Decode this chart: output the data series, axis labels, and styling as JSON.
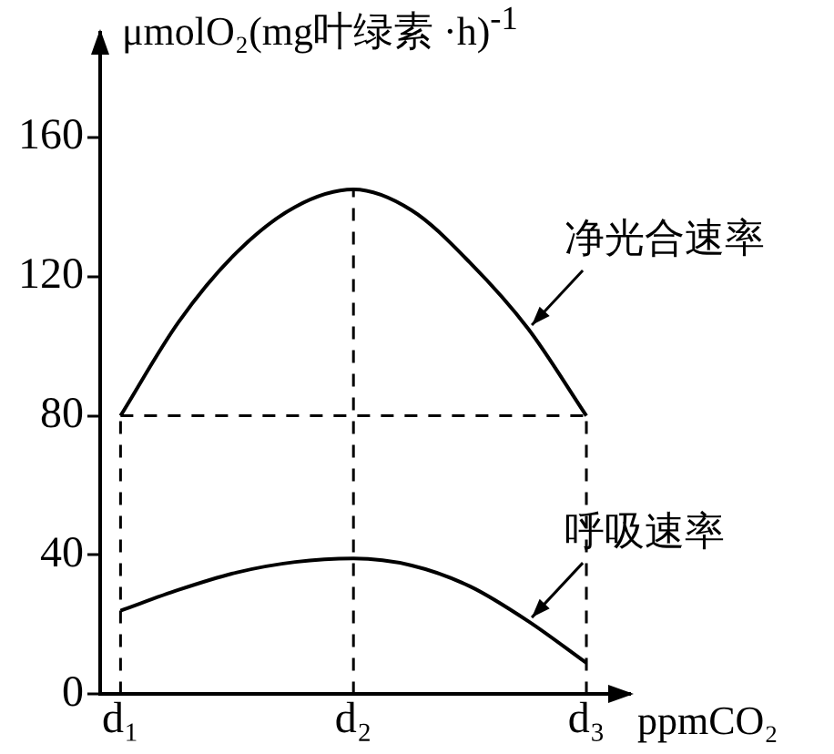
{
  "chart_data": {
    "type": "line",
    "xlabel": "ppmCO₂",
    "ylabel": "μmolO₂(mg叶绿素 ·h)$^{-1}$",
    "categories": [
      "d₁",
      null,
      null,
      null,
      "d₂",
      null,
      null,
      null,
      "d₃"
    ],
    "ylim": [
      0,
      190
    ],
    "yticks": [
      0,
      40,
      80,
      120,
      160
    ],
    "grid": false,
    "legend": false,
    "marker": "none",
    "line_style": "solid",
    "series": [
      {
        "name": "净光合速率",
        "color": "#000000",
        "values": [
          80,
          107,
          127,
          140,
          145,
          139,
          124,
          105,
          80
        ]
      },
      {
        "name": "呼吸速率",
        "color": "#000000",
        "values": [
          24,
          30,
          35,
          38,
          39,
          37,
          31,
          21,
          9
        ]
      }
    ],
    "ref_lines": [
      {
        "axis": "y",
        "value": 80,
        "line_style": "dashed"
      },
      {
        "axis": "x",
        "value": "d₁",
        "line_style": "dashed"
      },
      {
        "axis": "x",
        "value": "d₂",
        "line_style": "dashed"
      },
      {
        "axis": "x",
        "value": "d₃",
        "line_style": "dashed"
      }
    ]
  }
}
